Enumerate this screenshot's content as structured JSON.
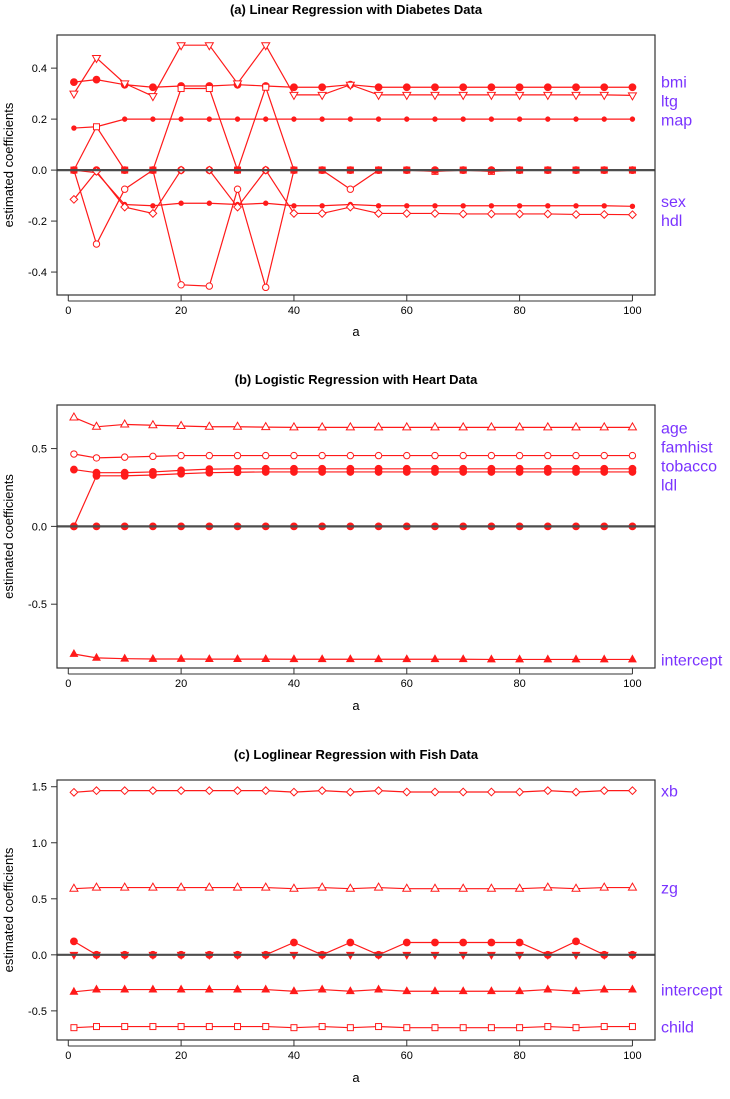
{
  "colors": {
    "series": "#ff1a1a",
    "labels": "#7a33ff",
    "zero_line": "#4d4d4d",
    "axes": "#333333"
  },
  "chart_data": [
    {
      "type": "line",
      "title": "(a) Linear Regression with Diabetes Data",
      "xlabel": "a",
      "ylabel": "estimated coefficients",
      "xlim": [
        -2,
        104
      ],
      "ylim": [
        -0.49,
        0.53
      ],
      "xticks": [
        0,
        20,
        40,
        60,
        80,
        100
      ],
      "yticks": [
        -0.4,
        -0.2,
        0.0,
        0.2,
        0.4
      ],
      "ytick_labels": [
        "-0.4",
        "-0.2",
        "0.0",
        "0.2",
        "0.4"
      ],
      "grid": false,
      "x": [
        1,
        5,
        10,
        15,
        20,
        25,
        30,
        35,
        40,
        45,
        50,
        55,
        60,
        65,
        70,
        75,
        80,
        85,
        90,
        95,
        100
      ],
      "series": [
        {
          "name": "bmi",
          "marker": "circle-filled",
          "values": [
            0.345,
            0.355,
            0.335,
            0.325,
            0.33,
            0.33,
            0.335,
            0.33,
            0.325,
            0.325,
            0.335,
            0.325,
            0.325,
            0.325,
            0.325,
            0.325,
            0.325,
            0.325,
            0.325,
            0.325,
            0.325
          ]
        },
        {
          "name": "ltg",
          "marker": "triangle-down-open",
          "values": [
            0.3,
            0.44,
            0.34,
            0.29,
            0.49,
            0.49,
            0.34,
            0.49,
            0.295,
            0.295,
            0.335,
            0.295,
            0.295,
            0.295,
            0.295,
            0.295,
            0.295,
            0.295,
            0.295,
            0.295,
            0.293
          ]
        },
        {
          "name": "map",
          "marker": "dot",
          "values": [
            0.165,
            0.17,
            0.2,
            0.2,
            0.2,
            0.2,
            0.2,
            0.2,
            0.2,
            0.2,
            0.2,
            0.2,
            0.2,
            0.2,
            0.2,
            0.2,
            0.2,
            0.2,
            0.2,
            0.2,
            0.2
          ]
        },
        {
          "marker": "square-open",
          "values": [
            0,
            0.17,
            0,
            0,
            0.32,
            0.32,
            0,
            0.325,
            0,
            0,
            0,
            0,
            0,
            -0.005,
            0,
            -0.005,
            0,
            0,
            0,
            0,
            0
          ]
        },
        {
          "marker": "circle-open",
          "values": [
            0,
            -0.29,
            -0.075,
            0,
            -0.45,
            -0.455,
            -0.075,
            -0.46,
            0,
            0,
            -0.075,
            0,
            0,
            0,
            0,
            0,
            0,
            0,
            0,
            0,
            0
          ]
        },
        {
          "marker": "circle-filled",
          "values": [
            0,
            0,
            0,
            0,
            0,
            0,
            0,
            0,
            0,
            0,
            0,
            0,
            0,
            0,
            0,
            0,
            0,
            0,
            0,
            0,
            0
          ]
        },
        {
          "name": "sex",
          "marker": "dot",
          "values": [
            0,
            -0.01,
            -0.135,
            -0.14,
            -0.13,
            -0.13,
            -0.135,
            -0.13,
            -0.14,
            -0.14,
            -0.135,
            -0.14,
            -0.14,
            -0.14,
            -0.14,
            -0.14,
            -0.14,
            -0.14,
            -0.14,
            -0.14,
            -0.142
          ]
        },
        {
          "name": "hdl",
          "marker": "diamond-open",
          "values": [
            -0.115,
            -0.005,
            -0.145,
            -0.17,
            0,
            0,
            -0.145,
            0,
            -0.17,
            -0.17,
            -0.145,
            -0.17,
            -0.17,
            -0.17,
            -0.172,
            -0.172,
            -0.172,
            -0.172,
            -0.174,
            -0.174,
            -0.175
          ]
        }
      ]
    },
    {
      "type": "line",
      "title": "(b) Logistic Regression with Heart Data",
      "xlabel": "a",
      "ylabel": "estimated coefficients",
      "xlim": [
        -2,
        104
      ],
      "ylim": [
        -0.91,
        0.78
      ],
      "xticks": [
        0,
        20,
        40,
        60,
        80,
        100
      ],
      "yticks": [
        -0.5,
        0.0,
        0.5
      ],
      "ytick_labels": [
        "-0.5",
        "0.0",
        "0.5"
      ],
      "grid": false,
      "x": [
        1,
        5,
        10,
        15,
        20,
        25,
        30,
        35,
        40,
        45,
        50,
        55,
        60,
        65,
        70,
        75,
        80,
        85,
        90,
        95,
        100
      ],
      "series": [
        {
          "name": "age",
          "marker": "triangle-up-open",
          "values": [
            0.7,
            0.64,
            0.655,
            0.65,
            0.645,
            0.64,
            0.64,
            0.638,
            0.636,
            0.636,
            0.636,
            0.636,
            0.636,
            0.636,
            0.636,
            0.636,
            0.636,
            0.636,
            0.636,
            0.636,
            0.636
          ]
        },
        {
          "name": "famhist",
          "marker": "circle-open",
          "values": [
            0.465,
            0.44,
            0.445,
            0.45,
            0.455,
            0.455,
            0.455,
            0.455,
            0.455,
            0.455,
            0.455,
            0.455,
            0.455,
            0.455,
            0.455,
            0.455,
            0.455,
            0.455,
            0.455,
            0.455,
            0.455
          ]
        },
        {
          "name": "tobacco",
          "marker": "circle-filled",
          "values": [
            0.365,
            0.345,
            0.345,
            0.35,
            0.36,
            0.368,
            0.37,
            0.37,
            0.37,
            0.37,
            0.37,
            0.37,
            0.37,
            0.37,
            0.37,
            0.37,
            0.37,
            0.37,
            0.37,
            0.37,
            0.37
          ]
        },
        {
          "name": "ldl",
          "marker": "circle-filled",
          "values": [
            0,
            0.325,
            0.325,
            0.33,
            0.338,
            0.345,
            0.348,
            0.35,
            0.35,
            0.35,
            0.35,
            0.35,
            0.35,
            0.35,
            0.35,
            0.35,
            0.35,
            0.35,
            0.35,
            0.35,
            0.35
          ]
        },
        {
          "marker": "circle-filled",
          "values": [
            0,
            0,
            0,
            0,
            0,
            0,
            0,
            0,
            0,
            0,
            0,
            0,
            0,
            0,
            0,
            0,
            0,
            0,
            0,
            0,
            0
          ]
        },
        {
          "name": "intercept",
          "marker": "triangle-up-filled",
          "values": [
            -0.82,
            -0.845,
            -0.85,
            -0.852,
            -0.852,
            -0.853,
            -0.853,
            -0.853,
            -0.854,
            -0.854,
            -0.854,
            -0.854,
            -0.854,
            -0.854,
            -0.854,
            -0.855,
            -0.855,
            -0.855,
            -0.855,
            -0.855,
            -0.855
          ]
        }
      ]
    },
    {
      "type": "line",
      "title": "(c) Loglinear Regression with Fish Data",
      "xlabel": "a",
      "ylabel": "estimated coefficients",
      "xlim": [
        -2,
        104
      ],
      "ylim": [
        -0.76,
        1.56
      ],
      "xticks": [
        0,
        20,
        40,
        60,
        80,
        100
      ],
      "yticks": [
        -0.5,
        0.0,
        0.5,
        1.0,
        1.5
      ],
      "ytick_labels": [
        "-0.5",
        "0.0",
        "0.5",
        "1.0",
        "1.5"
      ],
      "grid": false,
      "x": [
        1,
        5,
        10,
        15,
        20,
        25,
        30,
        35,
        40,
        45,
        50,
        55,
        60,
        65,
        70,
        75,
        80,
        85,
        90,
        95,
        100
      ],
      "series": [
        {
          "name": "xb",
          "marker": "diamond-open",
          "values": [
            1.45,
            1.465,
            1.465,
            1.465,
            1.465,
            1.465,
            1.465,
            1.465,
            1.452,
            1.465,
            1.452,
            1.465,
            1.453,
            1.453,
            1.453,
            1.453,
            1.453,
            1.465,
            1.452,
            1.465,
            1.465
          ]
        },
        {
          "name": "zg",
          "marker": "triangle-up-open",
          "values": [
            0.59,
            0.6,
            0.6,
            0.6,
            0.6,
            0.6,
            0.6,
            0.6,
            0.59,
            0.6,
            0.59,
            0.6,
            0.59,
            0.59,
            0.59,
            0.59,
            0.59,
            0.6,
            0.59,
            0.6,
            0.6
          ]
        },
        {
          "marker": "circle-filled",
          "values": [
            0.12,
            0,
            0,
            0,
            0,
            0,
            0,
            0,
            0.11,
            0,
            0.11,
            0,
            0.11,
            0.11,
            0.11,
            0.11,
            0.11,
            0,
            0.12,
            0,
            0
          ]
        },
        {
          "marker": "triangle-down-filled",
          "values": [
            0,
            0,
            0,
            0,
            0,
            0,
            0,
            0,
            0,
            0,
            0,
            0,
            0,
            0,
            0,
            0,
            0,
            0,
            0,
            0,
            0
          ]
        },
        {
          "name": "intercept",
          "marker": "triangle-up-filled",
          "values": [
            -0.33,
            -0.31,
            -0.31,
            -0.31,
            -0.31,
            -0.31,
            -0.31,
            -0.31,
            -0.325,
            -0.31,
            -0.325,
            -0.31,
            -0.325,
            -0.325,
            -0.325,
            -0.325,
            -0.325,
            -0.31,
            -0.325,
            -0.31,
            -0.31
          ]
        },
        {
          "name": "child",
          "marker": "square-open",
          "values": [
            -0.65,
            -0.64,
            -0.64,
            -0.64,
            -0.64,
            -0.64,
            -0.64,
            -0.64,
            -0.65,
            -0.64,
            -0.65,
            -0.64,
            -0.65,
            -0.65,
            -0.65,
            -0.65,
            -0.65,
            -0.64,
            -0.65,
            -0.64,
            -0.64
          ]
        }
      ]
    }
  ]
}
